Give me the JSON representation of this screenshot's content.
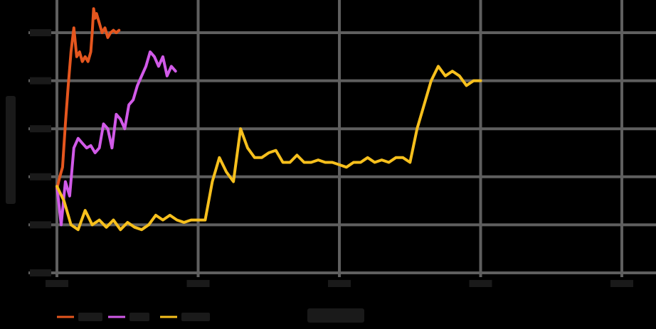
{
  "chart_data": {
    "type": "line",
    "title": "",
    "xlabel": "",
    "ylabel": "",
    "xlim": [
      0,
      4
    ],
    "ylim": [
      0,
      5.5
    ],
    "x_ticks": [
      0,
      1,
      2,
      3,
      4
    ],
    "y_ticks": [
      0,
      1,
      2,
      3,
      4,
      5
    ],
    "grid": true,
    "legend_position": "bottom-left",
    "background": "#000000",
    "grid_color": "#5f5f5f",
    "series": [
      {
        "color": "#e5561e",
        "x": [
          0.0,
          0.02,
          0.04,
          0.06,
          0.08,
          0.1,
          0.12,
          0.14,
          0.16,
          0.18,
          0.2,
          0.22,
          0.24,
          0.25,
          0.26,
          0.27,
          0.28,
          0.3,
          0.32,
          0.34,
          0.36,
          0.38,
          0.4,
          0.42,
          0.44
        ],
        "y": [
          1.75,
          2.0,
          2.2,
          3.1,
          3.9,
          4.6,
          5.1,
          4.5,
          4.6,
          4.4,
          4.5,
          4.4,
          4.6,
          5.0,
          5.5,
          5.3,
          5.4,
          5.2,
          5.0,
          5.1,
          4.9,
          5.0,
          5.05,
          5.0,
          5.05
        ]
      },
      {
        "color": "#d15ae8",
        "x": [
          0.0,
          0.03,
          0.06,
          0.09,
          0.12,
          0.15,
          0.18,
          0.21,
          0.24,
          0.27,
          0.3,
          0.33,
          0.36,
          0.39,
          0.42,
          0.45,
          0.48,
          0.51,
          0.54,
          0.57,
          0.6,
          0.63,
          0.66,
          0.69,
          0.72,
          0.75,
          0.78,
          0.81,
          0.84
        ],
        "y": [
          1.8,
          1.0,
          1.9,
          1.6,
          2.6,
          2.8,
          2.7,
          2.6,
          2.65,
          2.5,
          2.6,
          3.1,
          3.0,
          2.6,
          3.3,
          3.2,
          3.0,
          3.5,
          3.6,
          3.9,
          4.1,
          4.3,
          4.6,
          4.5,
          4.3,
          4.5,
          4.1,
          4.3,
          4.2
        ]
      },
      {
        "color": "#f7c01d",
        "x": [
          0.0,
          0.05,
          0.1,
          0.15,
          0.2,
          0.25,
          0.3,
          0.35,
          0.4,
          0.45,
          0.5,
          0.55,
          0.6,
          0.65,
          0.7,
          0.75,
          0.8,
          0.85,
          0.9,
          0.95,
          1.0,
          1.05,
          1.1,
          1.15,
          1.2,
          1.25,
          1.3,
          1.35,
          1.4,
          1.45,
          1.5,
          1.55,
          1.6,
          1.65,
          1.7,
          1.75,
          1.8,
          1.85,
          1.9,
          1.95,
          2.0,
          2.05,
          2.1,
          2.15,
          2.2,
          2.25,
          2.3,
          2.35,
          2.4,
          2.45,
          2.5,
          2.55,
          2.6,
          2.65,
          2.7,
          2.75,
          2.8,
          2.85,
          2.9,
          2.95,
          3.0
        ],
        "y": [
          1.8,
          1.5,
          1.0,
          0.9,
          1.3,
          1.0,
          1.1,
          0.95,
          1.1,
          0.9,
          1.05,
          0.95,
          0.9,
          1.0,
          1.2,
          1.1,
          1.2,
          1.1,
          1.05,
          1.1,
          1.1,
          1.1,
          1.9,
          2.4,
          2.1,
          1.9,
          3.0,
          2.6,
          2.4,
          2.4,
          2.5,
          2.55,
          2.3,
          2.3,
          2.45,
          2.3,
          2.3,
          2.35,
          2.3,
          2.3,
          2.25,
          2.2,
          2.3,
          2.3,
          2.4,
          2.3,
          2.35,
          2.3,
          2.4,
          2.4,
          2.3,
          3.0,
          3.5,
          4.0,
          4.3,
          4.1,
          4.2,
          4.1,
          3.9,
          4.0,
          4.0
        ]
      }
    ]
  }
}
